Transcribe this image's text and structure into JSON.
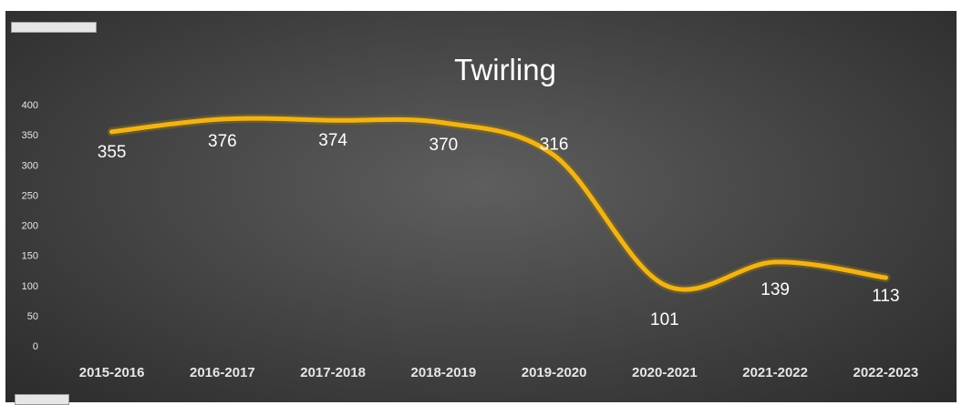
{
  "top_tag": "",
  "bottom_tag": "",
  "colors": {
    "line": "#f0b41a",
    "line_glow": "#8a6a10",
    "text": "#ffffff",
    "axis_text": "#e6e6e6"
  },
  "chart_data": {
    "type": "line",
    "title": "Twirling",
    "xlabel": "",
    "ylabel": "",
    "categories": [
      "2015-2016",
      "2016-2017",
      "2017-2018",
      "2018-2019",
      "2019-2020",
      "2020-2021",
      "2021-2022",
      "2022-2023"
    ],
    "values": [
      355,
      376,
      374,
      370,
      316,
      101,
      139,
      113
    ],
    "data_labels": [
      "355",
      "376",
      "374",
      "370",
      "316",
      "101",
      "139",
      "113"
    ],
    "y_ticks": [
      0,
      50,
      100,
      150,
      200,
      250,
      300,
      350,
      400
    ],
    "ylim": [
      0,
      400
    ],
    "grid": false,
    "legend": "none",
    "smooth": true
  }
}
